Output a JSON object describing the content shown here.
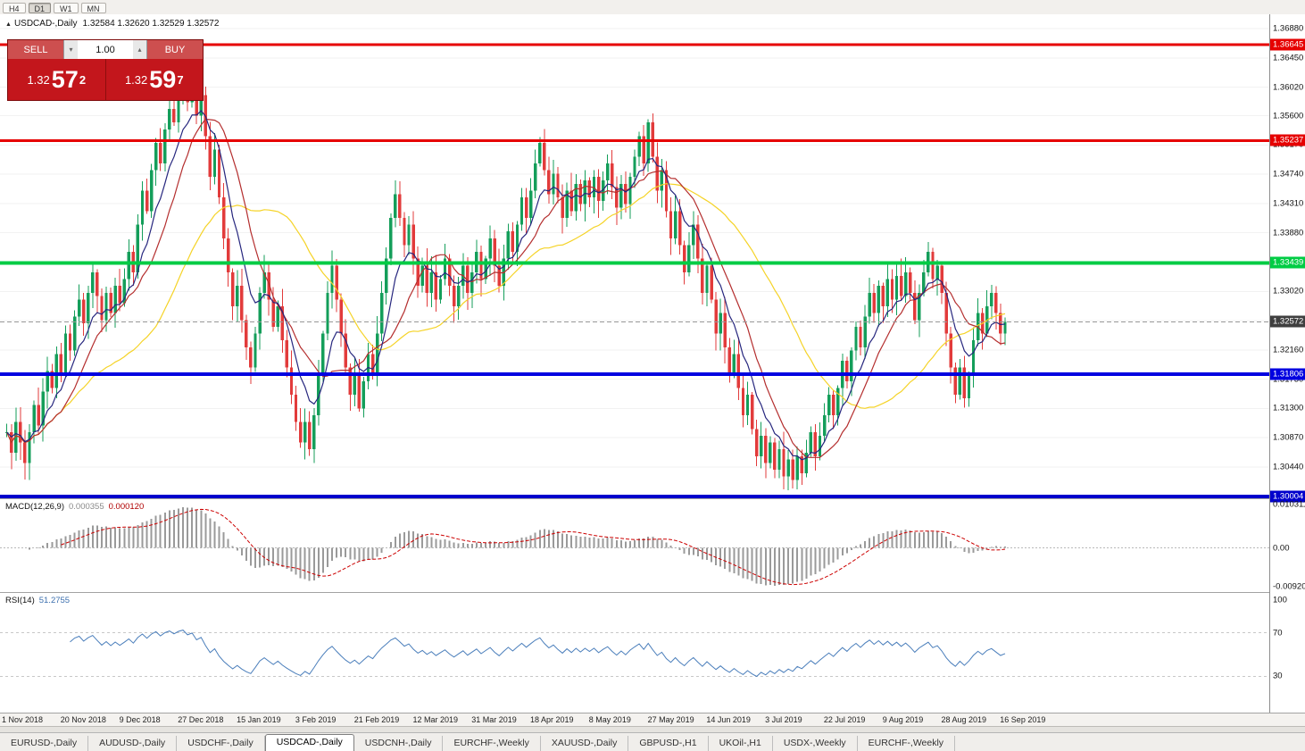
{
  "toolbar": {
    "timeframes": [
      {
        "label": "H4",
        "active": false
      },
      {
        "label": "D1",
        "active": true
      },
      {
        "label": "W1",
        "active": false
      },
      {
        "label": "MN",
        "active": false
      }
    ]
  },
  "icons": {
    "chart_marker": "▲",
    "volume_down": "▾",
    "volume_up": "▴"
  },
  "chart": {
    "symbol_period": "USDCAD-,Daily",
    "ohlc": "1.32584 1.32620 1.32529 1.32572"
  },
  "trade_panel": {
    "sell_label": "SELL",
    "buy_label": "BUY",
    "volume": "1.00",
    "sell_price_small": "1.32",
    "sell_price_big": "57",
    "sell_price_sup": "2",
    "buy_price_small": "1.32",
    "buy_price_big": "59",
    "buy_price_sup": "7"
  },
  "chart_data": {
    "type": "candlestick",
    "symbol": "USDCAD-",
    "timeframe": "Daily",
    "colors": {
      "up": "#149e5a",
      "down": "#e23b3b",
      "grid": "#f2f2f2",
      "macd_hist": "#9a9a9a",
      "macd_signal": "#cc0000",
      "rsi_line": "#4a7ebb",
      "current_line": "#999999"
    },
    "price_axis_ticks": [
      "1.36880",
      "1.36450",
      "1.36020",
      "1.35600",
      "1.35170",
      "1.34740",
      "1.34310",
      "1.33880",
      "1.33450",
      "1.33020",
      "1.32590",
      "1.32160",
      "1.31730",
      "1.31300",
      "1.30870",
      "1.30440"
    ],
    "hlines": [
      {
        "label": "1.36645",
        "price": 1.36645,
        "color": "#e60000",
        "width": 3
      },
      {
        "label": "1.35237",
        "price": 1.35237,
        "color": "#e60000",
        "width": 3
      },
      {
        "label": "1.33439",
        "price": 1.33439,
        "color": "#00cc44",
        "width": 4
      },
      {
        "label": "1.31806",
        "price": 1.31806,
        "color": "#0000e0",
        "width": 4
      },
      {
        "label": "1.30004",
        "price": 1.30004,
        "color": "#0000cc",
        "width": 4
      }
    ],
    "current_price": {
      "label": "1.32572",
      "price": 1.32572,
      "badge_color": "#3f3f3f"
    },
    "moving_averages": [
      {
        "name": "ma-slow",
        "period": 34,
        "method": "sma",
        "color": "#f5d327"
      },
      {
        "name": "ma-mid",
        "period": 13,
        "method": "sma",
        "color": "#b42e2e"
      },
      {
        "name": "ma-fast",
        "period": 8,
        "method": "ema",
        "color": "#26267e"
      }
    ],
    "closes": [
      1.3095,
      1.3065,
      1.311,
      1.308,
      1.305,
      1.3095,
      1.3135,
      1.3105,
      1.3155,
      1.3185,
      1.316,
      1.321,
      1.318,
      1.324,
      1.3215,
      1.3265,
      1.329,
      1.3255,
      1.33,
      1.333,
      1.3295,
      1.326,
      1.33,
      1.327,
      1.331,
      1.3285,
      1.332,
      1.336,
      1.333,
      1.34,
      1.345,
      1.342,
      1.348,
      1.352,
      1.349,
      1.354,
      1.357,
      1.355,
      1.359,
      1.361,
      1.358,
      1.3605,
      1.356,
      1.359,
      1.353,
      1.347,
      1.351,
      1.344,
      1.338,
      1.333,
      1.328,
      1.331,
      1.326,
      1.322,
      1.319,
      1.324,
      1.33,
      1.333,
      1.329,
      1.325,
      1.328,
      1.323,
      1.319,
      1.315,
      1.311,
      1.308,
      1.311,
      1.307,
      1.312,
      1.318,
      1.324,
      1.33,
      1.334,
      1.329,
      1.324,
      1.319,
      1.315,
      1.318,
      1.313,
      1.317,
      1.321,
      1.318,
      1.324,
      1.33,
      1.335,
      1.341,
      1.3445,
      1.341,
      1.337,
      1.34,
      1.335,
      1.331,
      1.334,
      1.33,
      1.333,
      1.329,
      1.332,
      1.335,
      1.331,
      1.328,
      1.331,
      1.334,
      1.33,
      1.333,
      1.336,
      1.332,
      1.335,
      1.338,
      1.334,
      1.331,
      1.335,
      1.339,
      1.336,
      1.34,
      1.344,
      1.341,
      1.345,
      1.349,
      1.352,
      1.348,
      1.3445,
      1.3475,
      1.344,
      1.341,
      1.345,
      1.342,
      1.346,
      1.343,
      1.3465,
      1.344,
      1.347,
      1.3435,
      1.3465,
      1.349,
      1.3455,
      1.3425,
      1.346,
      1.343,
      1.347,
      1.35,
      1.353,
      1.349,
      1.355,
      1.35,
      1.345,
      1.348,
      1.342,
      1.338,
      1.342,
      1.337,
      1.333,
      1.337,
      1.34,
      1.335,
      1.33,
      1.334,
      1.329,
      1.324,
      1.327,
      1.322,
      1.318,
      1.321,
      1.316,
      1.312,
      1.315,
      1.31,
      1.306,
      1.309,
      1.305,
      1.308,
      1.304,
      1.307,
      1.303,
      1.3055,
      1.3025,
      1.306,
      1.3035,
      1.3065,
      1.3095,
      1.306,
      1.309,
      1.312,
      1.315,
      1.312,
      1.316,
      1.32,
      1.317,
      1.3215,
      1.325,
      1.322,
      1.3265,
      1.33,
      1.327,
      1.331,
      1.328,
      1.332,
      1.329,
      1.3325,
      1.3295,
      1.333,
      1.33,
      1.326,
      1.33,
      1.333,
      1.336,
      1.332,
      1.334,
      1.33,
      1.324,
      1.319,
      1.315,
      1.319,
      1.3145,
      1.318,
      1.323,
      1.327,
      1.324,
      1.328,
      1.33,
      1.327,
      1.324,
      1.3257
    ],
    "date_labels": [
      {
        "text": "1 Nov 2018",
        "i": 0
      },
      {
        "text": "20 Nov 2018",
        "i": 13
      },
      {
        "text": "9 Dec 2018",
        "i": 26
      },
      {
        "text": "27 Dec 2018",
        "i": 39
      },
      {
        "text": "15 Jan 2019",
        "i": 52
      },
      {
        "text": "3 Feb 2019",
        "i": 65
      },
      {
        "text": "21 Feb 2019",
        "i": 78
      },
      {
        "text": "12 Mar 2019",
        "i": 91
      },
      {
        "text": "31 Mar 2019",
        "i": 104
      },
      {
        "text": "18 Apr 2019",
        "i": 117
      },
      {
        "text": "8 May 2019",
        "i": 130
      },
      {
        "text": "27 May 2019",
        "i": 143
      },
      {
        "text": "14 Jun 2019",
        "i": 156
      },
      {
        "text": "3 Jul 2019",
        "i": 169
      },
      {
        "text": "22 Jul 2019",
        "i": 182
      },
      {
        "text": "9 Aug 2019",
        "i": 195
      },
      {
        "text": "28 Aug 2019",
        "i": 208
      },
      {
        "text": "16 Sep 2019",
        "i": 221
      }
    ],
    "macd": {
      "label": "MACD(12,26,9)",
      "value_main": "0.000355",
      "value_signal": "0.000120",
      "fast": 12,
      "slow": 26,
      "signal_period": 9,
      "axis_labels": [
        {
          "text": "0.010311",
          "value": 0.010311
        },
        {
          "text": "0.00",
          "value": 0
        },
        {
          "text": "-0.009203",
          "value": -0.009203
        }
      ]
    },
    "rsi": {
      "label": "RSI(14)",
      "value": "51.2755",
      "period": 14,
      "axis_labels": [
        {
          "text": "100",
          "value": 100
        },
        {
          "text": "70",
          "value": 70
        },
        {
          "text": "30",
          "value": 30
        }
      ],
      "level_lines": [
        70,
        30
      ]
    }
  },
  "tabs": [
    {
      "label": "EURUSD-,Daily",
      "active": false
    },
    {
      "label": "AUDUSD-,Daily",
      "active": false
    },
    {
      "label": "USDCHF-,Daily",
      "active": false
    },
    {
      "label": "USDCAD-,Daily",
      "active": true
    },
    {
      "label": "USDCNH-,Daily",
      "active": false
    },
    {
      "label": "EURCHF-,Weekly",
      "active": false
    },
    {
      "label": "XAUUSD-,Daily",
      "active": false
    },
    {
      "label": "GBPUSD-,H1",
      "active": false
    },
    {
      "label": "UKOil-,H1",
      "active": false
    },
    {
      "label": "USDX-,Weekly",
      "active": false
    },
    {
      "label": "EURCHF-,Weekly",
      "active": false
    }
  ]
}
